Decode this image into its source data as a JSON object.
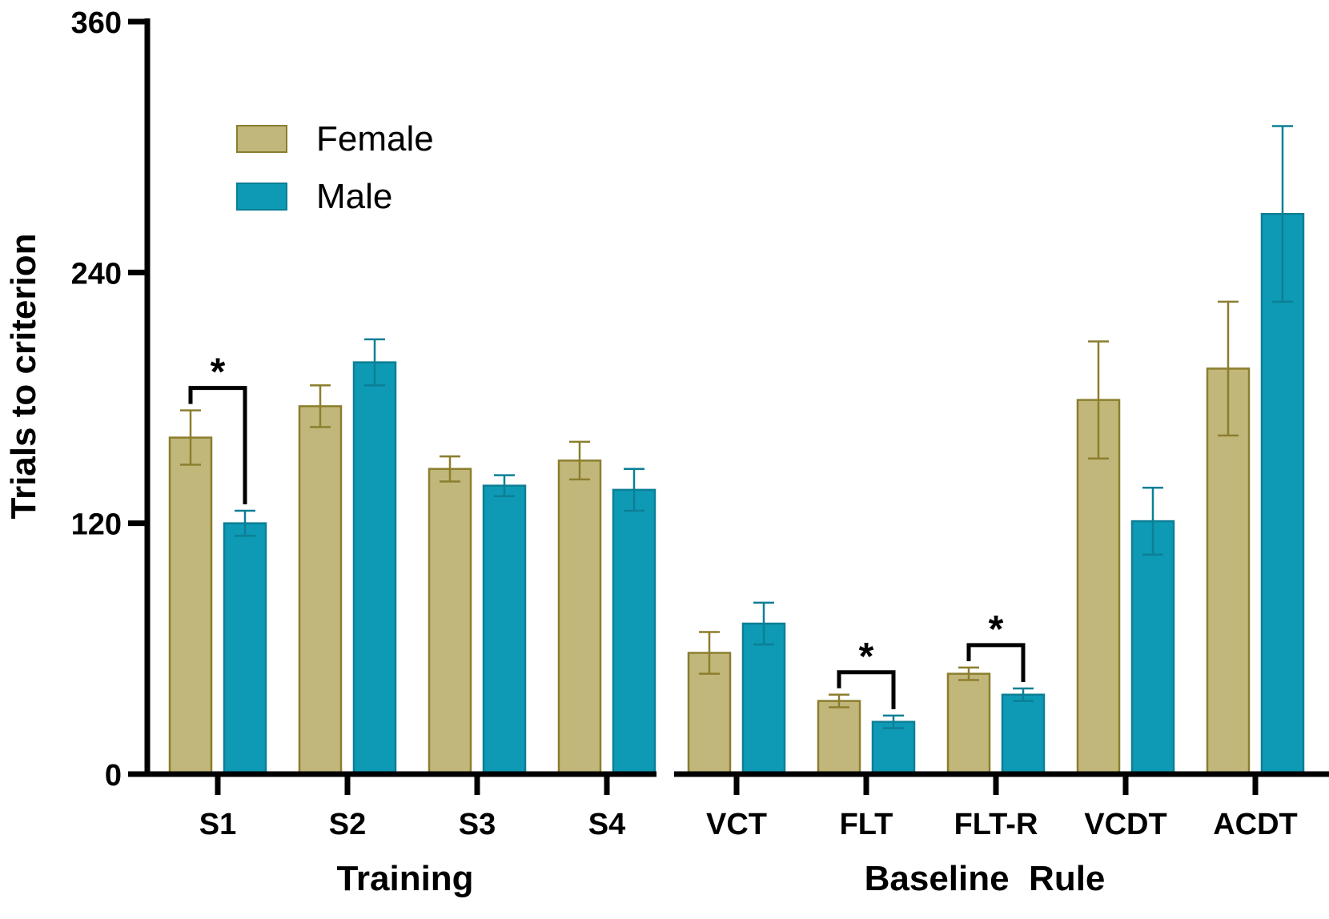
{
  "chart_data": {
    "type": "bar",
    "ylabel": "Trials to criterion",
    "ylim": [
      0,
      360
    ],
    "yticks": [
      0,
      120,
      240,
      360
    ],
    "groups": [
      {
        "label": "Training",
        "categories": [
          "S1",
          "S2",
          "S3",
          "S4"
        ]
      },
      {
        "label": "Baseline  Rule",
        "categories": [
          "VCT",
          "FLT",
          "FLT-R",
          "VCDT",
          "ACDT"
        ]
      }
    ],
    "categories": [
      "S1",
      "S2",
      "S3",
      "S4",
      "VCT",
      "FLT",
      "FLT-R",
      "VCDT",
      "ACDT"
    ],
    "series": [
      {
        "name": "Female",
        "color": "#c2b77a",
        "edge": "#8b7e2e",
        "values": [
          161,
          176,
          146,
          150,
          58,
          35,
          48,
          179,
          194
        ],
        "errors": [
          13,
          10,
          6,
          9,
          10,
          3,
          3,
          28,
          32
        ]
      },
      {
        "name": "Male",
        "color": "#0e9ab4",
        "edge": "#0c7f96",
        "values": [
          120,
          197,
          138,
          136,
          72,
          25,
          38,
          121,
          268
        ],
        "errors": [
          6,
          11,
          5,
          10,
          10,
          3,
          3,
          16,
          42
        ]
      }
    ],
    "legend": {
      "position": "top-left",
      "entries": [
        "Female",
        "Male"
      ]
    },
    "significance": [
      {
        "category": "S1",
        "label": "*"
      },
      {
        "category": "FLT",
        "label": "*"
      },
      {
        "category": "FLT-R",
        "label": "*"
      }
    ]
  }
}
